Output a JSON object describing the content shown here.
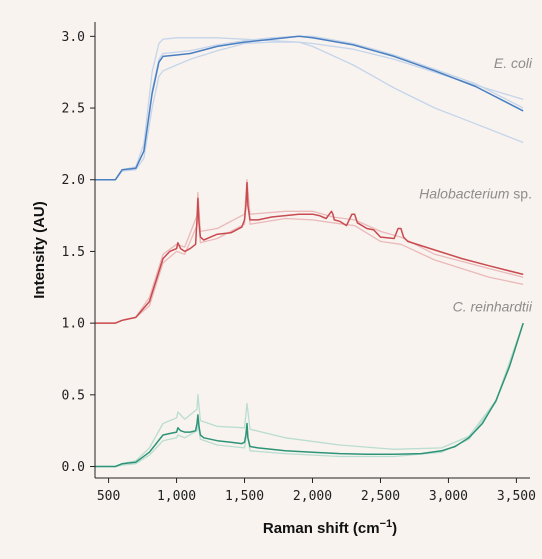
{
  "chart_data": {
    "type": "line",
    "xlabel": "Raman shift (cm",
    "xlabel_sup": "−1",
    "xlabel_end": ")",
    "ylabel": "Intensity (AU)",
    "xlim": [
      400,
      3600
    ],
    "ylim": [
      -0.08,
      3.1
    ],
    "x_ticks": [
      500,
      1000,
      1500,
      2000,
      2500,
      3000,
      3500
    ],
    "x_tick_labels": [
      "500",
      "1,000",
      "1,500",
      "2,000",
      "2,500",
      "3,000",
      "3,500"
    ],
    "y_ticks": [
      0.0,
      0.5,
      1.0,
      1.5,
      2.0,
      2.5,
      3.0
    ],
    "y_tick_labels": [
      "0.0",
      "0.5",
      "1.0",
      "1.5",
      "2.0",
      "2.5",
      "3.0"
    ],
    "grid": false,
    "legend": "inline labels at right",
    "series": [
      {
        "name": "E. coli",
        "label_italic": "E. coli",
        "label_plain": "",
        "color": "#4a7fc1",
        "light_color": "#c5d5ea",
        "x": [
          400,
          550,
          600,
          700,
          760,
          820,
          870,
          900,
          1000,
          1100,
          1300,
          1500,
          1700,
          1900,
          2000,
          2300,
          2600,
          2900,
          3200,
          3550
        ],
        "y": [
          2.0,
          2.0,
          2.07,
          2.08,
          2.2,
          2.6,
          2.82,
          2.86,
          2.87,
          2.88,
          2.93,
          2.96,
          2.98,
          3.0,
          2.99,
          2.94,
          2.86,
          2.76,
          2.65,
          2.48
        ],
        "variants": [
          {
            "x": [
              400,
              550,
              600,
              700,
              760,
              820,
              870,
              900,
              1000,
              1100,
              1300,
              1500,
              1700,
              1900,
              2000,
              2300,
              2600,
              2900,
              3200,
              3550
            ],
            "y": [
              2.0,
              2.0,
              2.07,
              2.09,
              2.25,
              2.75,
              2.95,
              2.98,
              2.99,
              2.99,
              2.99,
              2.98,
              2.97,
              2.96,
              2.95,
              2.91,
              2.84,
              2.75,
              2.66,
              2.56
            ]
          },
          {
            "x": [
              400,
              550,
              600,
              700,
              760,
              820,
              870,
              900,
              1000,
              1100,
              1300,
              1500,
              1700,
              1900,
              2000,
              2300,
              2600,
              2900,
              3200,
              3550
            ],
            "y": [
              2.0,
              2.0,
              2.06,
              2.07,
              2.15,
              2.5,
              2.72,
              2.76,
              2.8,
              2.84,
              2.9,
              2.95,
              2.96,
              2.96,
              2.93,
              2.8,
              2.64,
              2.5,
              2.39,
              2.26
            ]
          },
          {
            "x": [
              400,
              550,
              600,
              700,
              760,
              820,
              870,
              900,
              1000,
              1100,
              1300,
              1500,
              1700,
              1900,
              2000,
              2300,
              2600,
              2900,
              3200,
              3550
            ],
            "y": [
              2.0,
              2.0,
              2.07,
              2.08,
              2.2,
              2.62,
              2.84,
              2.88,
              2.89,
              2.9,
              2.94,
              2.97,
              2.99,
              3.0,
              3.0,
              2.95,
              2.87,
              2.77,
              2.67,
              2.5
            ]
          }
        ]
      },
      {
        "name": "Halobacterium sp.",
        "label_italic": "Halobacterium",
        "label_plain": " sp.",
        "color": "#c94a4f",
        "light_color": "#eab9b9",
        "x": [
          400,
          550,
          600,
          700,
          800,
          850,
          900,
          950,
          1000,
          1010,
          1030,
          1060,
          1100,
          1140,
          1150,
          1157,
          1165,
          1175,
          1200,
          1250,
          1300,
          1400,
          1480,
          1500,
          1510,
          1518,
          1525,
          1540,
          1600,
          1700,
          1800,
          1900,
          2000,
          2050,
          2100,
          2140,
          2150,
          2160,
          2200,
          2250,
          2290,
          2310,
          2330,
          2400,
          2450,
          2480,
          2500,
          2600,
          2630,
          2650,
          2670,
          2700,
          2900,
          3100,
          3300,
          3550
        ],
        "y": [
          1.0,
          1.0,
          1.02,
          1.04,
          1.15,
          1.3,
          1.45,
          1.5,
          1.52,
          1.56,
          1.52,
          1.5,
          1.52,
          1.55,
          1.72,
          1.87,
          1.7,
          1.6,
          1.58,
          1.6,
          1.62,
          1.63,
          1.67,
          1.72,
          1.82,
          1.98,
          1.82,
          1.72,
          1.72,
          1.74,
          1.75,
          1.76,
          1.76,
          1.75,
          1.73,
          1.78,
          1.76,
          1.72,
          1.71,
          1.68,
          1.76,
          1.76,
          1.7,
          1.66,
          1.65,
          1.62,
          1.6,
          1.59,
          1.66,
          1.66,
          1.6,
          1.57,
          1.51,
          1.45,
          1.4,
          1.34
        ],
        "variants": [
          {
            "x": [
              400,
              550,
              600,
              700,
              800,
              900,
              1000,
              1060,
              1150,
              1157,
              1175,
              1300,
              1500,
              1518,
              1540,
              1800,
              2000,
              2150,
              2310,
              2500,
              2650,
              2900,
              3300,
              3550
            ],
            "y": [
              1.0,
              1.0,
              1.02,
              1.04,
              1.18,
              1.48,
              1.55,
              1.53,
              1.75,
              1.91,
              1.64,
              1.66,
              1.76,
              2.0,
              1.76,
              1.78,
              1.78,
              1.74,
              1.72,
              1.64,
              1.6,
              1.48,
              1.38,
              1.32
            ]
          },
          {
            "x": [
              400,
              550,
              600,
              700,
              800,
              900,
              1000,
              1060,
              1150,
              1157,
              1175,
              1300,
              1500,
              1518,
              1540,
              1800,
              2000,
              2150,
              2310,
              2500,
              2650,
              2900,
              3300,
              3550
            ],
            "y": [
              1.0,
              1.0,
              1.02,
              1.04,
              1.12,
              1.42,
              1.5,
              1.48,
              1.68,
              1.83,
              1.56,
              1.59,
              1.69,
              1.94,
              1.69,
              1.73,
              1.72,
              1.7,
              1.68,
              1.57,
              1.55,
              1.44,
              1.32,
              1.27
            ]
          }
        ]
      },
      {
        "name": "C. reinhardtii",
        "label_italic": "C. reinhardtii",
        "label_plain": "",
        "color": "#2e9478",
        "light_color": "#b9ddd0",
        "x": [
          400,
          550,
          600,
          700,
          800,
          850,
          900,
          950,
          1000,
          1010,
          1030,
          1060,
          1100,
          1140,
          1150,
          1157,
          1165,
          1175,
          1200,
          1300,
          1400,
          1480,
          1500,
          1510,
          1518,
          1525,
          1540,
          1600,
          1800,
          2000,
          2200,
          2400,
          2600,
          2800,
          2950,
          3050,
          3150,
          3250,
          3350,
          3450,
          3550
        ],
        "y": [
          0.0,
          0.0,
          0.02,
          0.03,
          0.1,
          0.16,
          0.22,
          0.23,
          0.24,
          0.27,
          0.25,
          0.24,
          0.24,
          0.25,
          0.3,
          0.36,
          0.28,
          0.22,
          0.2,
          0.18,
          0.17,
          0.16,
          0.17,
          0.22,
          0.3,
          0.2,
          0.14,
          0.13,
          0.11,
          0.1,
          0.09,
          0.085,
          0.085,
          0.09,
          0.11,
          0.14,
          0.2,
          0.3,
          0.46,
          0.7,
          1.0
        ],
        "variants": [
          {
            "x": [
              400,
              550,
              600,
              700,
              800,
              900,
              1000,
              1010,
              1060,
              1150,
              1157,
              1175,
              1300,
              1500,
              1518,
              1540,
              1800,
              2200,
              2600,
              2950,
              3150,
              3350,
              3550
            ],
            "y": [
              0.0,
              0.0,
              0.02,
              0.04,
              0.13,
              0.3,
              0.34,
              0.38,
              0.33,
              0.4,
              0.5,
              0.32,
              0.28,
              0.27,
              0.44,
              0.26,
              0.2,
              0.15,
              0.12,
              0.13,
              0.21,
              0.46,
              1.0
            ]
          },
          {
            "x": [
              400,
              550,
              600,
              700,
              800,
              900,
              1000,
              1010,
              1060,
              1150,
              1157,
              1175,
              1300,
              1500,
              1518,
              1540,
              1800,
              2200,
              2600,
              2950,
              3150,
              3350,
              3550
            ],
            "y": [
              0.0,
              0.0,
              0.01,
              0.02,
              0.08,
              0.18,
              0.2,
              0.22,
              0.2,
              0.25,
              0.3,
              0.19,
              0.15,
              0.13,
              0.24,
              0.11,
              0.09,
              0.07,
              0.07,
              0.1,
              0.19,
              0.45,
              1.0
            ]
          }
        ]
      }
    ]
  }
}
